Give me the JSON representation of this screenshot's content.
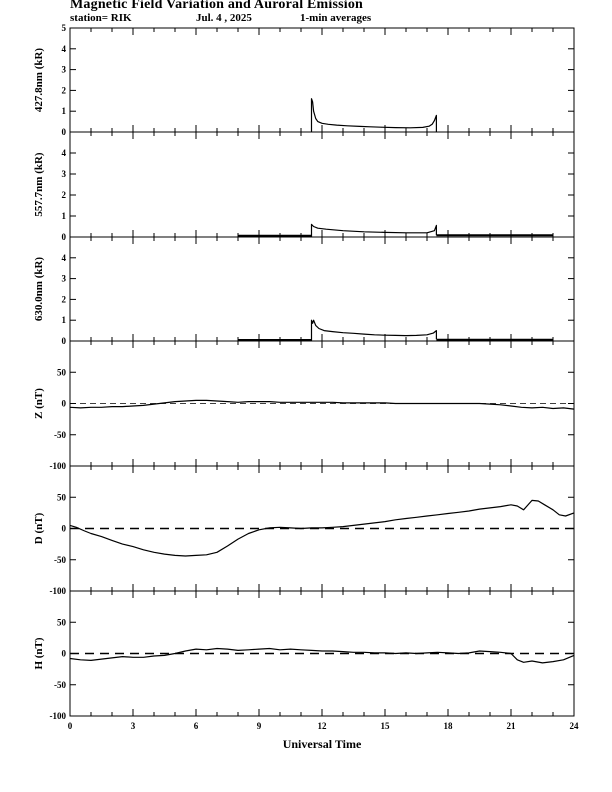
{
  "header": {
    "title": "Magnetic Field Variation and Auroral Emission",
    "station": "station= RIK",
    "date": "Jul.  4  , 2025",
    "averaging": "1-min averages"
  },
  "chart_data": [
    {
      "type": "line",
      "ylabel": "427.8nm (kR)",
      "ylim": [
        0,
        5
      ],
      "yticks": [
        "0",
        "1",
        "2",
        "3",
        "4",
        "5"
      ],
      "ytick_values": [
        0,
        1,
        2,
        3,
        4,
        5
      ],
      "xlim": [
        0,
        24
      ],
      "baseline": null,
      "series": [
        {
          "x": [
            11.5,
            11.5,
            11.55,
            11.6,
            11.7,
            11.8,
            12.0,
            12.3,
            12.7,
            13.2,
            13.8,
            14.3,
            14.8,
            15.5,
            16.2,
            16.8,
            17.1,
            17.25,
            17.35,
            17.45,
            17.45
          ],
          "y": [
            0,
            1.6,
            1.45,
            1.0,
            0.65,
            0.5,
            0.42,
            0.37,
            0.33,
            0.3,
            0.27,
            0.25,
            0.23,
            0.21,
            0.2,
            0.22,
            0.28,
            0.38,
            0.55,
            0.8,
            0
          ]
        }
      ]
    },
    {
      "type": "line",
      "ylabel": "557.7nm (kR)",
      "ylim": [
        0,
        5
      ],
      "yticks": [
        "0",
        "1",
        "2",
        "3",
        "4"
      ],
      "ytick_values": [
        0,
        1,
        2,
        3,
        4
      ],
      "xlim": [
        0,
        24
      ],
      "baseline": null,
      "series": [
        {
          "x": [
            8.0,
            11.5
          ],
          "y": [
            0.06,
            0.06
          ]
        },
        {
          "x": [
            11.5,
            11.5,
            11.6,
            11.8,
            12.2,
            13.0,
            14.0,
            15.0,
            16.0,
            17.0,
            17.35,
            17.45,
            17.45
          ],
          "y": [
            0,
            0.6,
            0.5,
            0.42,
            0.37,
            0.3,
            0.25,
            0.22,
            0.2,
            0.2,
            0.3,
            0.55,
            0.08
          ]
        },
        {
          "x": [
            17.45,
            23.0
          ],
          "y": [
            0.08,
            0.08
          ]
        }
      ]
    },
    {
      "type": "line",
      "ylabel": "630.0nm (kR)",
      "ylim": [
        0,
        5
      ],
      "yticks": [
        "0",
        "1",
        "2",
        "3",
        "4"
      ],
      "ytick_values": [
        0,
        1,
        2,
        3,
        4
      ],
      "xlim": [
        0,
        24
      ],
      "baseline": null,
      "series": [
        {
          "x": [
            8.0,
            11.5
          ],
          "y": [
            0.05,
            0.05
          ]
        },
        {
          "x": [
            11.5,
            11.5,
            11.55,
            11.6,
            11.7,
            11.85,
            12.1,
            12.5,
            13.0,
            13.5,
            14.0,
            14.5,
            15.0,
            15.5,
            16.0,
            16.5,
            17.0,
            17.3,
            17.45,
            17.45
          ],
          "y": [
            0,
            1.0,
            0.85,
            1.0,
            0.75,
            0.6,
            0.5,
            0.45,
            0.4,
            0.37,
            0.33,
            0.3,
            0.28,
            0.27,
            0.26,
            0.27,
            0.3,
            0.38,
            0.5,
            0.08
          ]
        },
        {
          "x": [
            17.45,
            23.0
          ],
          "y": [
            0.06,
            0.06
          ]
        }
      ]
    },
    {
      "type": "line",
      "ylabel": "Z (nT)",
      "ylim": [
        -100,
        100
      ],
      "yticks": [
        "50",
        "0",
        "-50",
        "-100"
      ],
      "ytick_values": [
        50,
        0,
        -50,
        -100
      ],
      "xlim": [
        0,
        24
      ],
      "baseline": 0,
      "series": [
        {
          "x": [
            0,
            0.5,
            1,
            1.5,
            2,
            2.5,
            3,
            3.5,
            4,
            4.5,
            5,
            5.5,
            6,
            6.5,
            7,
            7.5,
            8,
            8.5,
            9,
            9.5,
            10,
            10.5,
            11,
            11.5,
            12,
            12.5,
            13,
            13.5,
            14,
            14.5,
            15,
            15.5,
            16,
            16.5,
            17,
            17.5,
            18,
            18.5,
            19,
            19.5,
            20,
            20.5,
            21,
            21.5,
            22,
            22.5,
            23,
            23.5,
            24
          ],
          "y": [
            -6,
            -7,
            -6,
            -6,
            -5,
            -5,
            -4,
            -3,
            -1,
            1,
            3,
            4,
            5,
            5,
            4,
            3,
            2,
            3,
            3,
            3,
            2,
            2,
            2,
            2,
            2,
            2,
            1,
            1,
            1,
            1,
            1,
            0,
            0,
            0,
            0,
            0,
            0,
            0,
            0,
            0,
            -1,
            -2,
            -4,
            -6,
            -7,
            -6,
            -8,
            -7,
            -9
          ]
        }
      ]
    },
    {
      "type": "line",
      "ylabel": "D (nT)",
      "ylim": [
        -100,
        100
      ],
      "yticks": [
        "50",
        "0",
        "-50",
        "-100"
      ],
      "ytick_values": [
        50,
        0,
        -50,
        -100
      ],
      "xlim": [
        0,
        24
      ],
      "baseline": 0,
      "series": [
        {
          "x": [
            0,
            0.3,
            0.7,
            1,
            1.5,
            2,
            2.5,
            3,
            3.5,
            4,
            4.5,
            5,
            5.5,
            6,
            6.5,
            7,
            7.5,
            8,
            8.5,
            9,
            9.5,
            10,
            10.5,
            11,
            11.5,
            12,
            12.5,
            13,
            13.5,
            14,
            14.5,
            15,
            15.5,
            16,
            16.5,
            17,
            17.5,
            18,
            18.5,
            19,
            19.5,
            20,
            20.5,
            21,
            21.3,
            21.6,
            22,
            22.3,
            22.6,
            23,
            23.3,
            23.6,
            24
          ],
          "y": [
            5,
            2,
            -4,
            -8,
            -13,
            -19,
            -25,
            -29,
            -34,
            -38,
            -41,
            -43,
            -44,
            -43,
            -42,
            -38,
            -28,
            -17,
            -8,
            -2,
            1,
            2,
            1,
            0,
            1,
            1,
            2,
            3,
            5,
            7,
            9,
            11,
            14,
            16,
            18,
            20,
            22,
            24,
            26,
            28,
            31,
            33,
            35,
            38,
            36,
            30,
            45,
            44,
            38,
            30,
            22,
            20,
            25
          ]
        }
      ]
    },
    {
      "type": "line",
      "ylabel": "H (nT)",
      "ylim": [
        -100,
        100
      ],
      "yticks": [
        "50",
        "0",
        "-50",
        "-100"
      ],
      "ytick_values": [
        50,
        0,
        -50,
        -100
      ],
      "xlim": [
        0,
        24
      ],
      "baseline": 0,
      "series": [
        {
          "x": [
            0,
            0.5,
            1,
            1.5,
            2,
            2.5,
            3,
            3.5,
            4,
            4.5,
            5,
            5.5,
            6,
            6.5,
            7,
            7.5,
            8,
            8.5,
            9,
            9.5,
            10,
            10.5,
            11,
            11.5,
            12,
            12.5,
            13,
            13.5,
            14,
            14.5,
            15,
            15.5,
            16,
            16.5,
            17,
            17.5,
            18,
            18.5,
            19,
            19.5,
            20,
            20.5,
            21,
            21.3,
            21.6,
            22,
            22.5,
            23,
            23.5,
            24
          ],
          "y": [
            -8,
            -10,
            -11,
            -9,
            -7,
            -5,
            -6,
            -6,
            -4,
            -3,
            0,
            4,
            7,
            6,
            8,
            7,
            5,
            6,
            7,
            8,
            6,
            7,
            6,
            5,
            4,
            4,
            3,
            2,
            2,
            1,
            1,
            0,
            1,
            0,
            1,
            2,
            1,
            0,
            1,
            4,
            3,
            2,
            0,
            -10,
            -14,
            -12,
            -15,
            -13,
            -10,
            -3
          ]
        }
      ]
    }
  ],
  "x_axis": {
    "label": "Universal Time",
    "ticks": [
      "0",
      "3",
      "6",
      "9",
      "12",
      "15",
      "18",
      "21",
      "24"
    ],
    "tick_values": [
      0,
      3,
      6,
      9,
      12,
      15,
      18,
      21,
      24
    ]
  }
}
